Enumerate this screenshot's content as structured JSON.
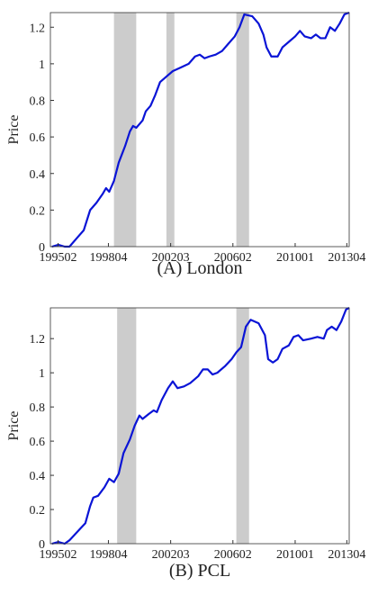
{
  "chart_data": [
    {
      "type": "line",
      "y_label": "Price",
      "caption": "(A) London",
      "xlim": [
        1994.6,
        2013.4
      ],
      "ylim": [
        0,
        1.28
      ],
      "xticks": [
        {
          "value": 1995.083,
          "label": "199502"
        },
        {
          "value": 1998.25,
          "label": "199804"
        },
        {
          "value": 2002.167,
          "label": "200203"
        },
        {
          "value": 2006.083,
          "label": "200602"
        },
        {
          "value": 2010.0,
          "label": "201001"
        },
        {
          "value": 2013.25,
          "label": "201304"
        }
      ],
      "yticks": [
        0,
        0.2,
        0.4,
        0.6,
        0.8,
        1,
        1.2
      ],
      "shaded_regions": [
        [
          1998.6,
          2000.0
        ],
        [
          2001.9,
          2002.4
        ],
        [
          2006.3,
          2007.1
        ]
      ],
      "shade_color": "#cccccc",
      "series": [
        {
          "color": "#0a14d6",
          "x": [
            1994.7,
            1995.1,
            1995.5,
            1995.8,
            1996.3,
            1996.7,
            1997.1,
            1997.5,
            1997.9,
            1998.1,
            1998.3,
            1998.6,
            1998.9,
            1999.3,
            1999.6,
            1999.8,
            2000.0,
            2000.4,
            2000.6,
            2000.9,
            2001.2,
            2001.5,
            2001.9,
            2002.3,
            2002.8,
            2003.3,
            2003.7,
            2004.0,
            2004.3,
            2004.6,
            2005.0,
            2005.4,
            2005.8,
            2006.2,
            2006.5,
            2006.8,
            2007.3,
            2007.7,
            2008.0,
            2008.2,
            2008.5,
            2008.9,
            2009.2,
            2009.6,
            2010.0,
            2010.3,
            2010.6,
            2011.0,
            2011.3,
            2011.6,
            2011.9,
            2012.2,
            2012.5,
            2012.8,
            2013.1,
            2013.4
          ],
          "values": [
            0,
            0.01,
            0,
            0,
            0.05,
            0.09,
            0.2,
            0.24,
            0.29,
            0.32,
            0.3,
            0.36,
            0.46,
            0.55,
            0.63,
            0.66,
            0.65,
            0.69,
            0.74,
            0.77,
            0.83,
            0.9,
            0.93,
            0.96,
            0.98,
            1.0,
            1.04,
            1.05,
            1.03,
            1.04,
            1.05,
            1.07,
            1.11,
            1.15,
            1.2,
            1.27,
            1.26,
            1.22,
            1.16,
            1.09,
            1.04,
            1.04,
            1.09,
            1.12,
            1.15,
            1.18,
            1.15,
            1.14,
            1.16,
            1.14,
            1.14,
            1.2,
            1.18,
            1.22,
            1.27,
            1.28
          ]
        }
      ]
    },
    {
      "type": "line",
      "y_label": "Price",
      "caption": "(B) PCL",
      "xlim": [
        1994.6,
        2013.4
      ],
      "ylim": [
        0,
        1.38
      ],
      "xticks": [
        {
          "value": 1995.083,
          "label": "199502"
        },
        {
          "value": 1998.25,
          "label": "199804"
        },
        {
          "value": 2002.167,
          "label": "200203"
        },
        {
          "value": 2006.083,
          "label": "200602"
        },
        {
          "value": 2010.0,
          "label": "201001"
        },
        {
          "value": 2013.25,
          "label": "201304"
        }
      ],
      "yticks": [
        0,
        0.2,
        0.4,
        0.6,
        0.8,
        1,
        1.2
      ],
      "shaded_regions": [
        [
          1998.8,
          2000.0
        ],
        [
          2006.3,
          2007.1
        ]
      ],
      "shade_color": "#cccccc",
      "series": [
        {
          "color": "#0a14d6",
          "x": [
            1994.7,
            1995.1,
            1995.5,
            1995.8,
            1996.5,
            1996.8,
            1997.1,
            1997.3,
            1997.6,
            1998.0,
            1998.3,
            1998.6,
            1998.9,
            1999.2,
            1999.6,
            1999.9,
            2000.2,
            2000.4,
            2000.8,
            2001.1,
            2001.3,
            2001.6,
            2002.0,
            2002.3,
            2002.6,
            2003.0,
            2003.4,
            2003.9,
            2004.2,
            2004.5,
            2004.8,
            2005.1,
            2005.6,
            2006.0,
            2006.3,
            2006.6,
            2006.9,
            2007.2,
            2007.7,
            2008.1,
            2008.3,
            2008.6,
            2008.9,
            2009.2,
            2009.6,
            2009.9,
            2010.2,
            2010.5,
            2011.0,
            2011.4,
            2011.8,
            2012.0,
            2012.3,
            2012.6,
            2012.9,
            2013.2,
            2013.4
          ],
          "values": [
            0,
            0.01,
            0,
            0.02,
            0.09,
            0.12,
            0.22,
            0.27,
            0.28,
            0.33,
            0.38,
            0.36,
            0.41,
            0.53,
            0.61,
            0.69,
            0.75,
            0.73,
            0.76,
            0.78,
            0.77,
            0.84,
            0.91,
            0.95,
            0.91,
            0.92,
            0.94,
            0.98,
            1.02,
            1.02,
            0.99,
            1.0,
            1.04,
            1.08,
            1.12,
            1.15,
            1.27,
            1.31,
            1.29,
            1.22,
            1.08,
            1.06,
            1.08,
            1.14,
            1.16,
            1.21,
            1.22,
            1.19,
            1.2,
            1.21,
            1.2,
            1.25,
            1.27,
            1.25,
            1.3,
            1.37,
            1.38
          ]
        }
      ]
    }
  ]
}
